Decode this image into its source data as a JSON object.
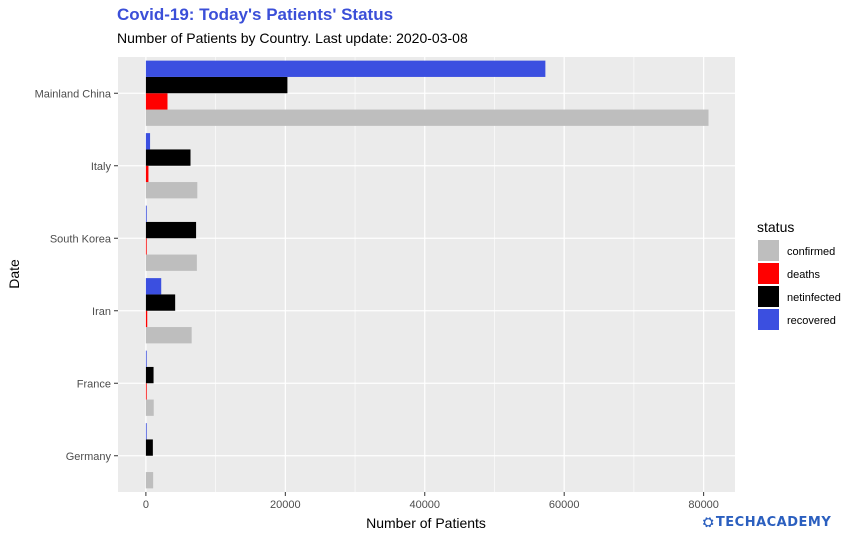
{
  "chart_data": {
    "type": "bar",
    "orientation": "horizontal",
    "title": "Covid-19: Today's Patients' Status",
    "subtitle": "Number of Patients by Country. Last update: 2020-03-08",
    "xlabel": "Number of Patients",
    "ylabel": "Date",
    "xlim": [
      -4000,
      84500
    ],
    "xticks": [
      0,
      20000,
      40000,
      60000,
      80000
    ],
    "grid": true,
    "legend_title": "status",
    "legend_position": "right",
    "categories": [
      "Mainland China",
      "Italy",
      "South Korea",
      "Iran",
      "France",
      "Germany"
    ],
    "series": [
      {
        "name": "confirmed",
        "color": "#bebebe",
        "values": [
          80700,
          7375,
          7313,
          6566,
          1126,
          1040
        ]
      },
      {
        "name": "deaths",
        "color": "#ff0000",
        "values": [
          3100,
          366,
          50,
          194,
          19,
          0
        ]
      },
      {
        "name": "netinfected",
        "color": "#000000",
        "values": [
          20300,
          6400,
          7200,
          4200,
          1100,
          1000
        ]
      },
      {
        "name": "recovered",
        "color": "#3b4fe0",
        "values": [
          57300,
          600,
          120,
          2200,
          12,
          25
        ]
      }
    ]
  },
  "brand": {
    "name": "TECHACADEMY",
    "icon": "gear-icon"
  }
}
